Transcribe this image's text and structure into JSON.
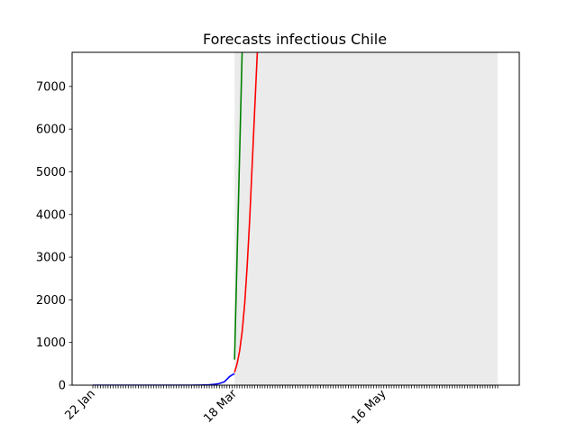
{
  "chart_data": {
    "type": "line",
    "title": "Forecasts infectious Chile",
    "xlabel": "",
    "ylabel": "",
    "x_axis": {
      "type": "date",
      "start": "2020-01-22",
      "end": "2020-06-30",
      "tick_labels": [
        {
          "label": "22 Jan",
          "date": "2020-01-22"
        },
        {
          "label": "18 Mar",
          "date": "2020-03-18"
        },
        {
          "label": "16 May",
          "date": "2020-05-16"
        }
      ]
    },
    "ylim": [
      0,
      7800
    ],
    "y_ticks": [
      0,
      1000,
      2000,
      3000,
      4000,
      5000,
      6000,
      7000
    ],
    "grid": false,
    "legend": "none",
    "shaded_region": {
      "from": "2020-03-18",
      "to": "2020-06-30",
      "color": "#ebebeb"
    },
    "series": [
      {
        "color": "#0000ff",
        "points": [
          [
            "2020-01-22",
            0
          ],
          [
            "2020-02-01",
            0
          ],
          [
            "2020-02-10",
            0
          ],
          [
            "2020-02-20",
            0
          ],
          [
            "2020-03-01",
            0
          ],
          [
            "2020-03-05",
            3
          ],
          [
            "2020-03-08",
            10
          ],
          [
            "2020-03-10",
            20
          ],
          [
            "2020-03-12",
            40
          ],
          [
            "2020-03-14",
            80
          ],
          [
            "2020-03-15",
            140
          ],
          [
            "2020-03-16",
            200
          ],
          [
            "2020-03-17",
            240
          ],
          [
            "2020-03-18",
            270
          ]
        ]
      },
      {
        "color": "#008000",
        "points": [
          [
            "2020-03-18",
            600
          ],
          [
            "2020-03-21",
            7800
          ]
        ]
      },
      {
        "color": "#ff0000",
        "points": [
          [
            "2020-03-18",
            300
          ],
          [
            "2020-03-19",
            500
          ],
          [
            "2020-03-20",
            800
          ],
          [
            "2020-03-21",
            1250
          ],
          [
            "2020-03-22",
            1900
          ],
          [
            "2020-03-23",
            2800
          ],
          [
            "2020-03-24",
            3900
          ],
          [
            "2020-03-25",
            5200
          ],
          [
            "2020-03-26",
            6500
          ],
          [
            "2020-03-27",
            7800
          ]
        ]
      }
    ]
  }
}
